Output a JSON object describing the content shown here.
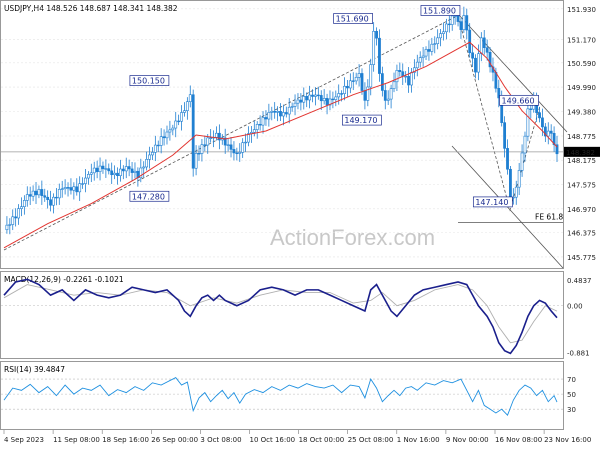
{
  "watermark": "ActionForex.com",
  "colors": {
    "candles": "#1f7fd1",
    "ma": "#e2342f",
    "macd": "#1a1f8c",
    "signal": "#b0b0b0",
    "rsi": "#1e90e0",
    "trend": "#555555",
    "box_text": "#1a2b8f",
    "grid": "#e4e4e4"
  },
  "chart_data": [
    {
      "type": "candlestick",
      "title": "USDJPY,H4 148.526 148.687 148.341 148.382",
      "ylim": [
        145.55,
        152.05
      ],
      "y_ticks": [
        151.93,
        151.17,
        150.59,
        149.99,
        149.38,
        148.775,
        148.175,
        147.575,
        146.97,
        146.375,
        145.775
      ],
      "y_tick_labels": [
        "151.930",
        "151.170",
        "150.590",
        "149.990",
        "149.380",
        "148.775",
        "148.175",
        "147.575",
        "146.970",
        "146.375",
        "145.775"
      ],
      "current_price": 148.382,
      "current_price_label": "148.382",
      "x_labels": [
        "4 Sep 2023",
        "11 Sep 08:00",
        "18 Sep 16:00",
        "26 Sep 00:00",
        "3 Oct 08:00",
        "10 Oct 16:00",
        "18 Oct 00:00",
        "25 Oct 08:00",
        "1 Nov 16:00",
        "9 Nov 00:00",
        "16 Nov 08:00",
        "23 Nov 16:00"
      ],
      "close_path": [
        [
          0,
          146.45
        ],
        [
          4,
          146.8
        ],
        [
          8,
          147.3
        ],
        [
          12,
          147.4
        ],
        [
          16,
          147.1
        ],
        [
          20,
          147.5
        ],
        [
          25,
          147.45
        ],
        [
          30,
          147.9
        ],
        [
          34,
          148.0
        ],
        [
          38,
          147.8
        ],
        [
          42,
          148.0
        ],
        [
          46,
          147.8
        ],
        [
          50,
          148.3
        ],
        [
          54,
          148.7
        ],
        [
          58,
          149.0
        ],
        [
          61,
          149.3
        ],
        [
          63,
          149.6
        ],
        [
          64,
          149.8
        ],
        [
          65,
          148.0
        ],
        [
          66,
          148.3
        ],
        [
          68,
          148.5
        ],
        [
          70,
          148.7
        ],
        [
          73,
          148.8
        ],
        [
          76,
          148.6
        ],
        [
          80,
          148.3
        ],
        [
          84,
          148.8
        ],
        [
          88,
          149.1
        ],
        [
          92,
          149.4
        ],
        [
          96,
          149.3
        ],
        [
          100,
          149.6
        ],
        [
          103,
          149.7
        ],
        [
          107,
          149.8
        ],
        [
          111,
          149.6
        ],
        [
          115,
          149.8
        ],
        [
          119,
          150.1
        ],
        [
          122,
          150.3
        ],
        [
          124,
          149.6
        ],
        [
          126,
          150.5
        ],
        [
          127,
          151.4
        ],
        [
          128,
          151.2
        ],
        [
          129,
          150.3
        ],
        [
          131,
          149.6
        ],
        [
          133,
          149.9
        ],
        [
          135,
          150.4
        ],
        [
          137,
          150.3
        ],
        [
          139,
          150.1
        ],
        [
          141,
          150.5
        ],
        [
          144,
          150.8
        ],
        [
          147,
          151.0
        ],
        [
          150,
          151.3
        ],
        [
          153,
          151.6
        ],
        [
          155,
          151.8
        ],
        [
          157,
          151.4
        ],
        [
          158,
          151.8
        ],
        [
          160,
          150.9
        ],
        [
          162,
          150.4
        ],
        [
          164,
          151.2
        ],
        [
          166,
          150.8
        ],
        [
          168,
          150.3
        ],
        [
          170,
          149.7
        ],
        [
          172,
          148.5
        ],
        [
          174,
          147.3
        ],
        [
          175,
          147.2
        ],
        [
          177,
          147.9
        ],
        [
          179,
          148.8
        ],
        [
          180,
          149.4
        ],
        [
          182,
          149.6
        ],
        [
          184,
          149.2
        ],
        [
          186,
          148.8
        ],
        [
          188,
          148.9
        ],
        [
          189,
          148.5
        ],
        [
          190,
          148.382
        ]
      ],
      "ma_path": [
        [
          0,
          146.0
        ],
        [
          15,
          146.6
        ],
        [
          30,
          147.1
        ],
        [
          45,
          147.7
        ],
        [
          58,
          148.3
        ],
        [
          66,
          148.8
        ],
        [
          76,
          148.7
        ],
        [
          90,
          148.9
        ],
        [
          110,
          149.5
        ],
        [
          120,
          149.8
        ],
        [
          132,
          150.1
        ],
        [
          145,
          150.5
        ],
        [
          155,
          150.9
        ],
        [
          160,
          151.1
        ],
        [
          166,
          150.7
        ],
        [
          172,
          150.0
        ],
        [
          178,
          149.4
        ],
        [
          185,
          148.9
        ],
        [
          190,
          148.5
        ]
      ],
      "annotations": [
        {
          "text": "150.150",
          "x": 57,
          "y": 150.15
        },
        {
          "text": "147.280",
          "x": 57,
          "y": 147.28
        },
        {
          "text": "151.690",
          "x": 127,
          "y": 151.69
        },
        {
          "text": "149.170",
          "x": 130,
          "y": 149.17
        },
        {
          "text": "151.890",
          "x": 157,
          "y": 151.89
        },
        {
          "text": "149.660",
          "x": 184,
          "y": 149.66
        },
        {
          "text": "147.140",
          "x": 175,
          "y": 147.14
        },
        {
          "text": "FE 61.8",
          "x": 190,
          "y": 146.85
        }
      ]
    },
    {
      "type": "line",
      "title": "MACD(12,26,9) -0.2261 -0.1021",
      "ylim": [
        -0.95,
        0.6
      ],
      "y_ticks": [
        0.4837,
        0.0,
        -0.881
      ],
      "y_tick_labels": [
        "0.4837",
        "0.00",
        "-0.881"
      ],
      "series": [
        {
          "name": "MACD",
          "values": [
            [
              0,
              0.2
            ],
            [
              4,
              0.45
            ],
            [
              8,
              0.5
            ],
            [
              12,
              0.4
            ],
            [
              16,
              0.2
            ],
            [
              20,
              0.3
            ],
            [
              24,
              0.1
            ],
            [
              28,
              0.3
            ],
            [
              32,
              0.2
            ],
            [
              36,
              0.15
            ],
            [
              40,
              0.2
            ],
            [
              44,
              0.35
            ],
            [
              48,
              0.3
            ],
            [
              52,
              0.25
            ],
            [
              56,
              0.3
            ],
            [
              60,
              0.1
            ],
            [
              62,
              -0.1
            ],
            [
              64,
              -0.2
            ],
            [
              66,
              0.0
            ],
            [
              68,
              0.15
            ],
            [
              70,
              0.2
            ],
            [
              72,
              0.1
            ],
            [
              74,
              0.2
            ],
            [
              76,
              0.1
            ],
            [
              80,
              0.0
            ],
            [
              84,
              0.1
            ],
            [
              88,
              0.3
            ],
            [
              92,
              0.35
            ],
            [
              96,
              0.3
            ],
            [
              100,
              0.2
            ],
            [
              104,
              0.3
            ],
            [
              108,
              0.3
            ],
            [
              112,
              0.2
            ],
            [
              116,
              0.1
            ],
            [
              120,
              0.0
            ],
            [
              124,
              -0.1
            ],
            [
              126,
              0.3
            ],
            [
              128,
              0.4
            ],
            [
              130,
              0.2
            ],
            [
              133,
              -0.1
            ],
            [
              135,
              -0.2
            ],
            [
              138,
              0.0
            ],
            [
              141,
              0.2
            ],
            [
              144,
              0.3
            ],
            [
              148,
              0.35
            ],
            [
              152,
              0.4
            ],
            [
              156,
              0.45
            ],
            [
              159,
              0.4
            ],
            [
              161,
              0.2
            ],
            [
              163,
              0.0
            ],
            [
              166,
              -0.2
            ],
            [
              168,
              -0.4
            ],
            [
              170,
              -0.7
            ],
            [
              172,
              -0.85
            ],
            [
              174,
              -0.9
            ],
            [
              176,
              -0.75
            ],
            [
              178,
              -0.5
            ],
            [
              180,
              -0.2
            ],
            [
              182,
              0.0
            ],
            [
              184,
              0.1
            ],
            [
              186,
              0.05
            ],
            [
              188,
              -0.1
            ],
            [
              190,
              -0.2261
            ]
          ]
        },
        {
          "name": "Signal",
          "values": [
            [
              0,
              0.15
            ],
            [
              8,
              0.4
            ],
            [
              16,
              0.3
            ],
            [
              24,
              0.2
            ],
            [
              32,
              0.25
            ],
            [
              40,
              0.2
            ],
            [
              48,
              0.3
            ],
            [
              56,
              0.25
            ],
            [
              64,
              0.0
            ],
            [
              72,
              0.15
            ],
            [
              80,
              0.05
            ],
            [
              88,
              0.2
            ],
            [
              96,
              0.3
            ],
            [
              104,
              0.25
            ],
            [
              112,
              0.25
            ],
            [
              120,
              0.05
            ],
            [
              126,
              0.1
            ],
            [
              130,
              0.25
            ],
            [
              135,
              0.0
            ],
            [
              141,
              0.1
            ],
            [
              148,
              0.3
            ],
            [
              156,
              0.4
            ],
            [
              161,
              0.3
            ],
            [
              166,
              0.0
            ],
            [
              170,
              -0.4
            ],
            [
              174,
              -0.7
            ],
            [
              178,
              -0.65
            ],
            [
              182,
              -0.3
            ],
            [
              186,
              0.0
            ],
            [
              190,
              -0.1021
            ]
          ]
        }
      ]
    },
    {
      "type": "line",
      "title": "RSI(14) 39.4847",
      "ylim": [
        5,
        90
      ],
      "y_ticks": [
        70,
        50,
        30
      ],
      "y_tick_labels": [
        "70",
        "50",
        "30"
      ],
      "series": [
        {
          "name": "RSI",
          "values": [
            [
              0,
              42
            ],
            [
              3,
              58
            ],
            [
              6,
              55
            ],
            [
              9,
              63
            ],
            [
              12,
              52
            ],
            [
              15,
              60
            ],
            [
              18,
              48
            ],
            [
              21,
              62
            ],
            [
              24,
              50
            ],
            [
              27,
              58
            ],
            [
              30,
              55
            ],
            [
              33,
              62
            ],
            [
              36,
              48
            ],
            [
              39,
              56
            ],
            [
              42,
              52
            ],
            [
              45,
              60
            ],
            [
              48,
              55
            ],
            [
              51,
              65
            ],
            [
              54,
              62
            ],
            [
              57,
              68
            ],
            [
              59,
              72
            ],
            [
              61,
              62
            ],
            [
              63,
              66
            ],
            [
              65,
              28
            ],
            [
              67,
              45
            ],
            [
              69,
              52
            ],
            [
              71,
              40
            ],
            [
              73,
              48
            ],
            [
              75,
              55
            ],
            [
              77,
              44
            ],
            [
              79,
              52
            ],
            [
              81,
              38
            ],
            [
              83,
              50
            ],
            [
              86,
              56
            ],
            [
              89,
              52
            ],
            [
              92,
              60
            ],
            [
              95,
              55
            ],
            [
              98,
              62
            ],
            [
              101,
              58
            ],
            [
              104,
              64
            ],
            [
              107,
              60
            ],
            [
              110,
              58
            ],
            [
              113,
              62
            ],
            [
              116,
              52
            ],
            [
              119,
              62
            ],
            [
              122,
              60
            ],
            [
              124,
              45
            ],
            [
              126,
              70
            ],
            [
              128,
              58
            ],
            [
              130,
              40
            ],
            [
              132,
              48
            ],
            [
              134,
              55
            ],
            [
              136,
              48
            ],
            [
              138,
              58
            ],
            [
              140,
              60
            ],
            [
              142,
              55
            ],
            [
              145,
              65
            ],
            [
              148,
              62
            ],
            [
              151,
              68
            ],
            [
              154,
              65
            ],
            [
              157,
              70
            ],
            [
              159,
              55
            ],
            [
              161,
              40
            ],
            [
              163,
              55
            ],
            [
              165,
              35
            ],
            [
              167,
              30
            ],
            [
              169,
              25
            ],
            [
              171,
              30
            ],
            [
              173,
              22
            ],
            [
              175,
              42
            ],
            [
              177,
              55
            ],
            [
              179,
              62
            ],
            [
              181,
              58
            ],
            [
              183,
              48
            ],
            [
              185,
              55
            ],
            [
              187,
              40
            ],
            [
              189,
              48
            ],
            [
              190,
              39.4847
            ]
          ]
        }
      ]
    }
  ]
}
